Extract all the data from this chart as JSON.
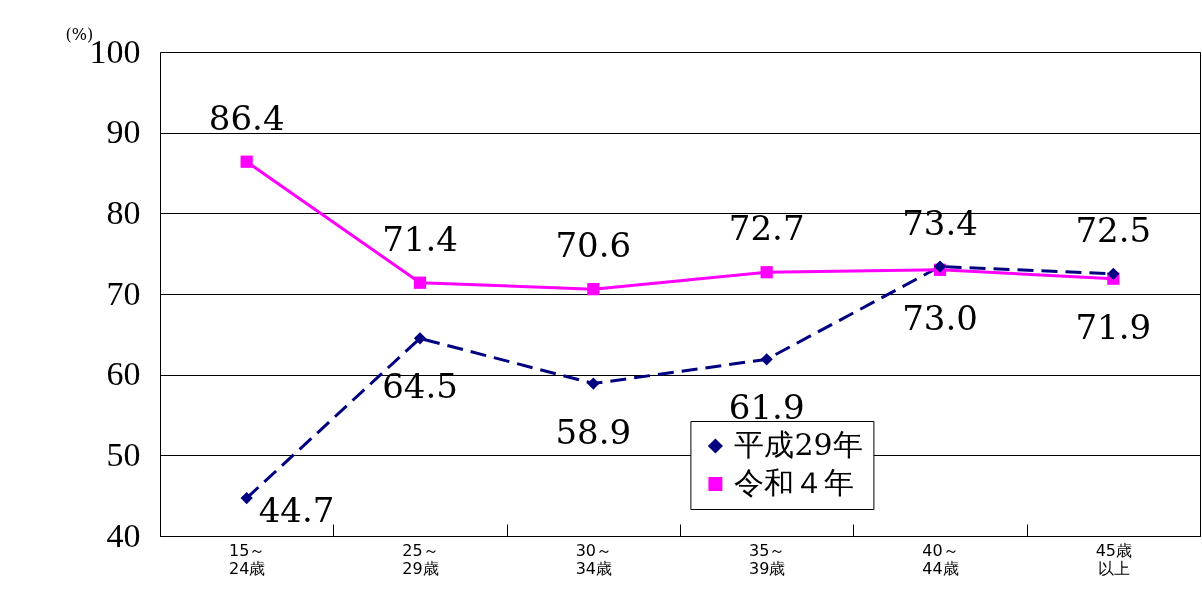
{
  "chart_data": {
    "type": "line",
    "ylabel": "(%)",
    "categories": [
      "15～24歳",
      "25～29歳",
      "30～34歳",
      "35～39歳",
      "40～44歳",
      "45歳以上"
    ],
    "series": [
      {
        "name": "平成29年",
        "color": "#000080",
        "marker": "diamond",
        "line_style": "dashed",
        "values": [
          44.7,
          64.5,
          58.9,
          61.9,
          73.4,
          72.5
        ]
      },
      {
        "name": "令和４年",
        "color": "#ff00ff",
        "marker": "square",
        "line_style": "solid",
        "values": [
          86.4,
          71.4,
          70.6,
          72.7,
          73.0,
          71.9
        ]
      }
    ],
    "value_labels": [
      [
        "44.7",
        "64.5",
        "58.9",
        "61.9",
        "73.4",
        "72.5"
      ],
      [
        "86.4",
        "71.4",
        "70.6",
        "72.7",
        "73.0",
        "71.9"
      ]
    ],
    "ylim": [
      40,
      100
    ],
    "yticks": [
      40,
      50,
      60,
      70,
      80,
      90,
      100
    ],
    "grid": "y",
    "legend": "bottom right"
  }
}
